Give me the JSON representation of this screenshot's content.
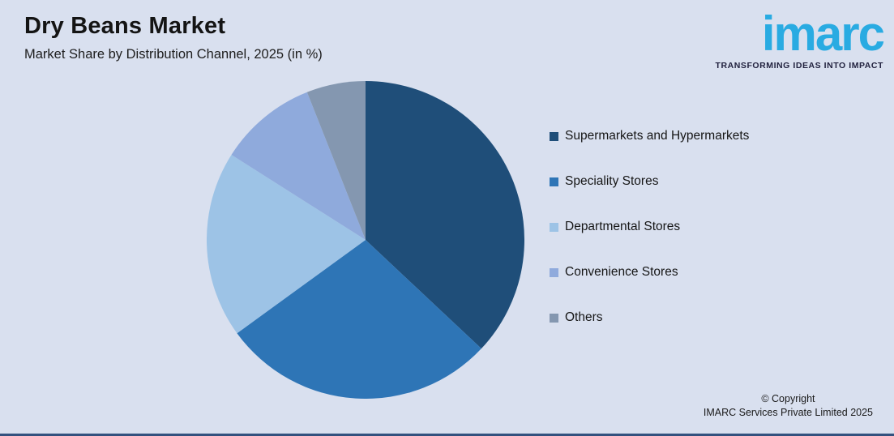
{
  "header": {
    "title": "Dry Beans Market",
    "subtitle": "Market Share by Distribution Channel, 2025 (in %)"
  },
  "logo": {
    "wordmark": "imarc",
    "tagline": "TRANSFORMING IDEAS INTO IMPACT",
    "brand_color": "#29abe2"
  },
  "footer": {
    "line1": "© Copyright",
    "line2": "IMARC Services Private Limited 2025"
  },
  "colors": {
    "background": "#d9e0ef",
    "bottom_bar": "#33517e",
    "text": "#161616"
  },
  "chart_data": {
    "type": "pie",
    "title": "Dry Beans Market",
    "subtitle": "Market Share by Distribution Channel, 2025 (in %)",
    "unit": "%",
    "categories": [
      "Supermarkets and Hypermarkets",
      "Speciality Stores",
      "Departmental Stores",
      "Convenience Stores",
      "Others"
    ],
    "values": [
      37,
      28,
      19,
      10,
      6
    ],
    "colors": [
      "#1f4e79",
      "#2e75b6",
      "#9dc3e6",
      "#8faadc",
      "#8497b0"
    ],
    "start_angle_deg": 0,
    "direction": "clockwise",
    "legend_position": "right",
    "data_labels": false
  }
}
